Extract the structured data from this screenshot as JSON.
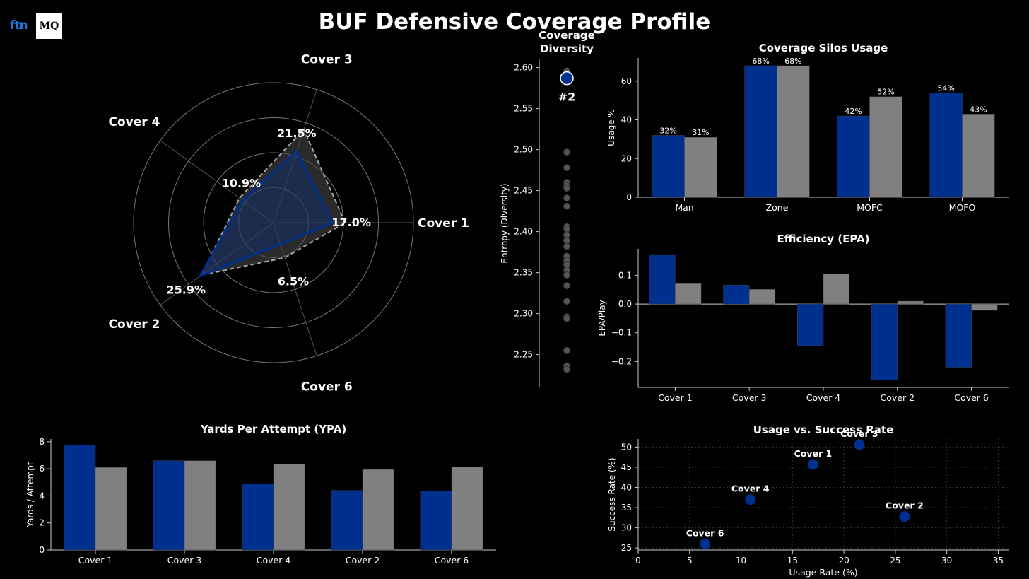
{
  "page": {
    "title": "BUF Defensive Coverage Profile"
  },
  "logos": {
    "left": "ftn",
    "right": "MQ"
  },
  "colors": {
    "team": "#00308f",
    "league": "#808080",
    "background": "#000000",
    "text": "#ffffff"
  },
  "chart_data": [
    {
      "id": "radar",
      "type": "radar",
      "axes": [
        "Cover 1",
        "Cover 3",
        "Cover 4",
        "Cover 2",
        "Cover 6"
      ],
      "series": [
        {
          "values": [
            17.0,
            21.5,
            10.9,
            25.9,
            6.5
          ],
          "labels": [
            "17.0%",
            "21.5%",
            "10.9%",
            "25.9%",
            "6.5%"
          ]
        },
        {
          "values": [
            20.5,
            28.0,
            12.0,
            25.5,
            10.5
          ]
        }
      ],
      "rmax": 40,
      "rings": 4
    },
    {
      "id": "diversity",
      "type": "strip",
      "title": "Coverage\nDiversity",
      "ylabel": "Entropy (Diversity)",
      "yticks": [
        2.25,
        2.3,
        2.35,
        2.4,
        2.45,
        2.5,
        2.55,
        2.6
      ],
      "ylim": [
        2.21,
        2.61
      ],
      "highlight": {
        "value": 2.587,
        "rank": "#2"
      },
      "others": [
        2.596,
        2.497,
        2.478,
        2.46,
        2.456,
        2.453,
        2.441,
        2.431,
        2.406,
        2.403,
        2.396,
        2.389,
        2.382,
        2.37,
        2.365,
        2.36,
        2.353,
        2.347,
        2.334,
        2.315,
        2.296,
        2.294,
        2.255,
        2.236,
        2.232
      ]
    },
    {
      "id": "silos",
      "type": "bar",
      "title": "Coverage Silos Usage",
      "ylabel": "Usage %",
      "categories": [
        "Man",
        "Zone",
        "MOFC",
        "MOFO"
      ],
      "series": [
        {
          "values": [
            32,
            68,
            42,
            54
          ],
          "labels": [
            "32%",
            "68%",
            "42%",
            "54%"
          ]
        },
        {
          "values": [
            31,
            68,
            52,
            43
          ],
          "labels": [
            "31%",
            "68%",
            "52%",
            "43%"
          ]
        }
      ],
      "ylim": [
        0,
        72
      ],
      "yticks": [
        0,
        20,
        40,
        60
      ]
    },
    {
      "id": "epa",
      "type": "bar",
      "title": "Efficiency (EPA)",
      "ylabel": "EPA/Play",
      "categories": [
        "Cover 1",
        "Cover 3",
        "Cover 4",
        "Cover 2",
        "Cover 6"
      ],
      "series": [
        {
          "values": [
            0.172,
            0.066,
            -0.145,
            -0.265,
            -0.22
          ]
        },
        {
          "values": [
            0.071,
            0.051,
            0.104,
            0.01,
            -0.022
          ]
        }
      ],
      "ylim": [
        -0.29,
        0.192
      ],
      "yticks": [
        -0.2,
        -0.1,
        0.0,
        0.1
      ],
      "yticklabels": [
        "−0.2",
        "−0.1",
        "0.0",
        "0.1"
      ]
    },
    {
      "id": "ypa",
      "type": "bar",
      "title": "Yards Per Attempt (YPA)",
      "ylabel": "Yards / Attempt",
      "categories": [
        "Cover 1",
        "Cover 3",
        "Cover 4",
        "Cover 2",
        "Cover 6"
      ],
      "series": [
        {
          "values": [
            7.75,
            6.6,
            4.9,
            4.4,
            4.35
          ]
        },
        {
          "values": [
            6.1,
            6.6,
            6.35,
            5.95,
            6.15
          ]
        }
      ],
      "ylim": [
        0,
        8.2
      ],
      "yticks": [
        0,
        2,
        4,
        6,
        8
      ]
    },
    {
      "id": "scatter",
      "type": "scatter",
      "title": "Usage vs. Success Rate",
      "xlabel": "Usage Rate (%)",
      "ylabel": "Success Rate (%)",
      "points": [
        {
          "label": "Cover 1",
          "x": 17.0,
          "y": 45.7
        },
        {
          "label": "Cover 3",
          "x": 21.5,
          "y": 50.6
        },
        {
          "label": "Cover 4",
          "x": 10.9,
          "y": 37.0
        },
        {
          "label": "Cover 2",
          "x": 25.9,
          "y": 32.8
        },
        {
          "label": "Cover 6",
          "x": 6.5,
          "y": 26.0
        }
      ],
      "xlim": [
        0,
        36
      ],
      "ylim": [
        24.5,
        52
      ],
      "xticks": [
        0,
        5,
        10,
        15,
        20,
        25,
        30,
        35
      ],
      "yticks": [
        25,
        30,
        35,
        40,
        45,
        50
      ],
      "grid": true
    }
  ]
}
